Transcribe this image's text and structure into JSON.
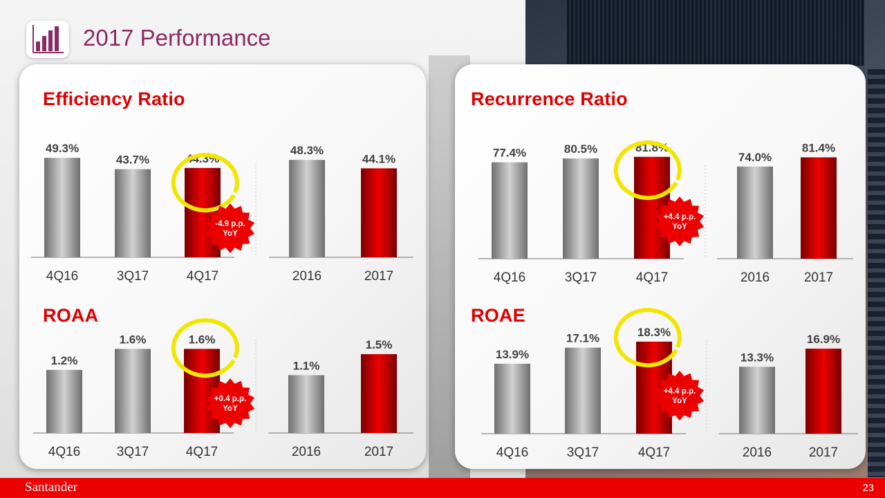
{
  "page": {
    "title": "2017 Performance",
    "page_number": "23",
    "brand": "Santander"
  },
  "colors": {
    "accent": "#ec0000",
    "title": "#8a2a62",
    "gray_bar": "#9a9a9a",
    "red_bar": "#d40000",
    "highlight": "#f2e600"
  },
  "chart_data": [
    {
      "id": "efficiency",
      "type": "bar",
      "title": "Efficiency Ratio",
      "quarterly": {
        "categories": [
          "4Q16",
          "3Q17",
          "4Q17"
        ],
        "values": [
          49.3,
          43.7,
          44.3
        ],
        "labels": [
          "49.3%",
          "43.7%",
          "44.3%"
        ]
      },
      "annual": {
        "categories": [
          "2016",
          "2017"
        ],
        "values": [
          48.3,
          44.1
        ],
        "labels": [
          "48.3%",
          "44.1%"
        ]
      },
      "badge": {
        "line1": "-4.9 p.p.",
        "line2": "YoY"
      },
      "ylim": [
        0,
        60
      ]
    },
    {
      "id": "recurrence",
      "type": "bar",
      "title": "Recurrence Ratio",
      "quarterly": {
        "categories": [
          "4Q16",
          "3Q17",
          "4Q17"
        ],
        "values": [
          77.4,
          80.5,
          81.8
        ],
        "labels": [
          "77.4%",
          "80.5%",
          "81.8%"
        ]
      },
      "annual": {
        "categories": [
          "2016",
          "2017"
        ],
        "values": [
          74.0,
          81.4
        ],
        "labels": [
          "74.0%",
          "81.4%"
        ]
      },
      "badge": {
        "line1": "+4.4 p.p.",
        "line2": "YoY"
      },
      "ylim": [
        0,
        100
      ]
    },
    {
      "id": "roaa",
      "type": "bar",
      "title": "ROAA",
      "quarterly": {
        "categories": [
          "4Q16",
          "3Q17",
          "4Q17"
        ],
        "values": [
          1.2,
          1.6,
          1.6
        ],
        "labels": [
          "1.2%",
          "1.6%",
          "1.6%"
        ]
      },
      "annual": {
        "categories": [
          "2016",
          "2017"
        ],
        "values": [
          1.1,
          1.5
        ],
        "labels": [
          "1.1%",
          "1.5%"
        ]
      },
      "badge": {
        "line1": "+0.4 p.p.",
        "line2": "YoY"
      },
      "ylim": [
        0,
        2
      ]
    },
    {
      "id": "roae",
      "type": "bar",
      "title": "ROAE",
      "quarterly": {
        "categories": [
          "4Q16",
          "3Q17",
          "4Q17"
        ],
        "values": [
          13.9,
          17.1,
          18.3
        ],
        "labels": [
          "13.9%",
          "17.1%",
          "18.3%"
        ]
      },
      "annual": {
        "categories": [
          "2016",
          "2017"
        ],
        "values": [
          13.3,
          16.9
        ],
        "labels": [
          "13.3%",
          "16.9%"
        ]
      },
      "badge": {
        "line1": "+4.4 p.p.",
        "line2": "YoY"
      },
      "ylim": [
        0,
        22
      ]
    }
  ]
}
